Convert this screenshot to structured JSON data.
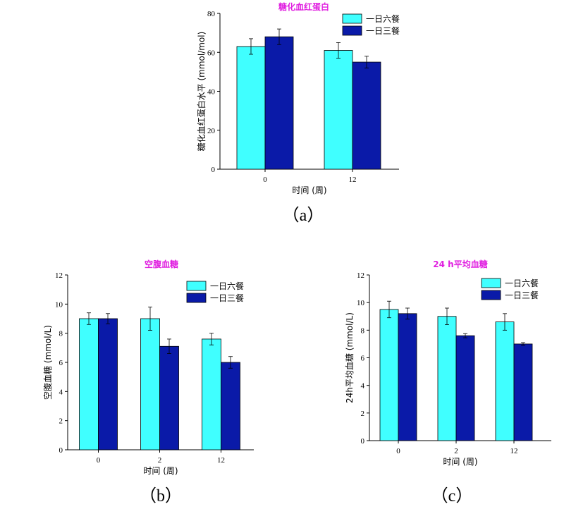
{
  "colors": {
    "six_meals": "#40ffff",
    "three_meals": "#0a1aa8",
    "title": "#e020e0"
  },
  "chart_data": [
    {
      "type": "bar",
      "title": "糖化血红蛋白",
      "caption": "（a）",
      "xlabel": "时间 (周)",
      "ylabel": "糖化血红蛋白水平 (mmol/mol)",
      "categories": [
        "0",
        "12"
      ],
      "ylim": [
        0,
        80
      ],
      "yticks": [
        0,
        20,
        40,
        60,
        80
      ],
      "legend_position": "top-right",
      "series": [
        {
          "name": "一日六餐",
          "values": [
            63,
            61
          ],
          "errors": [
            4,
            4
          ]
        },
        {
          "name": "一日三餐",
          "values": [
            68,
            55
          ],
          "errors": [
            4,
            3
          ]
        }
      ]
    },
    {
      "type": "bar",
      "title": "空腹血糖",
      "caption": "（b）",
      "xlabel": "时间 (周)",
      "ylabel": "空腹血糖 (mmol/L)",
      "categories": [
        "0",
        "2",
        "12"
      ],
      "ylim": [
        0,
        12
      ],
      "yticks": [
        0,
        2,
        4,
        6,
        8,
        10,
        12
      ],
      "legend_position": "top-right",
      "series": [
        {
          "name": "一日六餐",
          "values": [
            9.0,
            9.0,
            7.6
          ],
          "errors": [
            0.4,
            0.8,
            0.4
          ]
        },
        {
          "name": "一日三餐",
          "values": [
            9.0,
            7.1,
            6.0
          ],
          "errors": [
            0.35,
            0.5,
            0.4
          ]
        }
      ]
    },
    {
      "type": "bar",
      "title": "24 h平均血糖",
      "caption": "（c）",
      "xlabel": "时间 (周)",
      "ylabel": "24h平均血糖 (mmol/L)",
      "categories": [
        "0",
        "2",
        "12"
      ],
      "ylim": [
        0,
        12
      ],
      "yticks": [
        0,
        2,
        4,
        6,
        8,
        10,
        12
      ],
      "legend_position": "top-right",
      "series": [
        {
          "name": "一日六餐",
          "values": [
            9.5,
            9.0,
            8.6
          ],
          "errors": [
            0.6,
            0.6,
            0.6
          ]
        },
        {
          "name": "一日三餐",
          "values": [
            9.2,
            7.6,
            7.0
          ],
          "errors": [
            0.4,
            0.15,
            0.1
          ]
        }
      ]
    }
  ]
}
